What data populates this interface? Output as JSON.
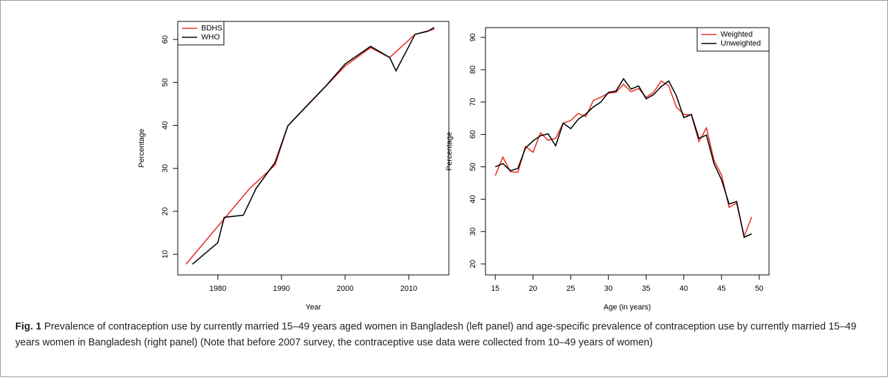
{
  "chart_data": [
    {
      "type": "line",
      "xlabel": "Year",
      "ylabel": "Percentage",
      "xlim": [
        1973.7,
        2016.3
      ],
      "ylim": [
        5.2,
        64.2
      ],
      "xticks": [
        1980,
        1990,
        2000,
        2010
      ],
      "yticks": [
        10,
        20,
        30,
        40,
        50,
        60
      ],
      "legend": "top-left",
      "series": [
        {
          "name": "BDHS",
          "color": "#e8302a",
          "x": [
            1975,
            1985,
            1989,
            1991,
            2000,
            2004,
            2007,
            2011,
            2014
          ],
          "values": [
            7.7,
            25.3,
            30.8,
            39.9,
            53.8,
            58.1,
            55.8,
            61.2,
            62.4
          ]
        },
        {
          "name": "WHO",
          "color": "#000000",
          "x": [
            1976,
            1980,
            1981,
            1984,
            1986,
            1989,
            1991,
            1994,
            1997,
            2000,
            2004,
            2007,
            2008,
            2011,
            2013,
            2014
          ],
          "values": [
            7.7,
            12.7,
            18.6,
            19.1,
            25.3,
            31.4,
            39.9,
            44.6,
            49.2,
            54.3,
            58.4,
            55.8,
            52.7,
            61.2,
            61.9,
            62.8
          ]
        }
      ]
    },
    {
      "type": "line",
      "xlabel": "Age (in years)",
      "ylabel": "Percentage",
      "xlim": [
        13.7,
        51.3
      ],
      "ylim": [
        16.6,
        93.0
      ],
      "xticks": [
        15,
        20,
        25,
        30,
        35,
        40,
        45,
        50
      ],
      "yticks": [
        20,
        30,
        40,
        50,
        60,
        70,
        80,
        90
      ],
      "legend": "top-right",
      "x": [
        15,
        16,
        17,
        18,
        19,
        20,
        21,
        22,
        23,
        24,
        25,
        26,
        27,
        28,
        29,
        30,
        31,
        32,
        33,
        34,
        35,
        36,
        37,
        38,
        39,
        40,
        41,
        42,
        43,
        44,
        45,
        46,
        47,
        48,
        49
      ],
      "series": [
        {
          "name": "Weighted",
          "color": "#e8302a",
          "values": [
            47.3,
            53,
            48.5,
            48.3,
            56.3,
            54.5,
            60.5,
            58.2,
            58.8,
            63.5,
            64.3,
            66.5,
            65.5,
            70.5,
            71.5,
            72.8,
            73,
            75.5,
            73.2,
            74.2,
            71.5,
            73,
            76.5,
            75,
            68.5,
            66.2,
            66,
            57.8,
            62,
            52,
            47.5,
            37.5,
            38.8,
            28.5,
            34.5
          ]
        },
        {
          "name": "Unweighted",
          "color": "#000000",
          "values": [
            50,
            51,
            48.8,
            49.5,
            55.8,
            58,
            59.6,
            60.2,
            56.5,
            63.5,
            61.8,
            64.7,
            66.3,
            68.5,
            70,
            73,
            73.4,
            77.2,
            74,
            75,
            71,
            72.3,
            74.8,
            76.5,
            72,
            65.2,
            66.2,
            58.8,
            59.8,
            51,
            46,
            38.5,
            39.3,
            28.2,
            29.3
          ]
        }
      ]
    }
  ],
  "caption": {
    "label": "Fig. 1",
    "text": "Prevalence of contraception use by currently married 15–49 years aged women in Bangladesh (left panel) and age-specific prevalence of contraception use by currently married 15–49 years women in Bangladesh (right panel) (Note that before 2007 survey, the contraceptive use data were collected from 10–49 years of women)"
  }
}
